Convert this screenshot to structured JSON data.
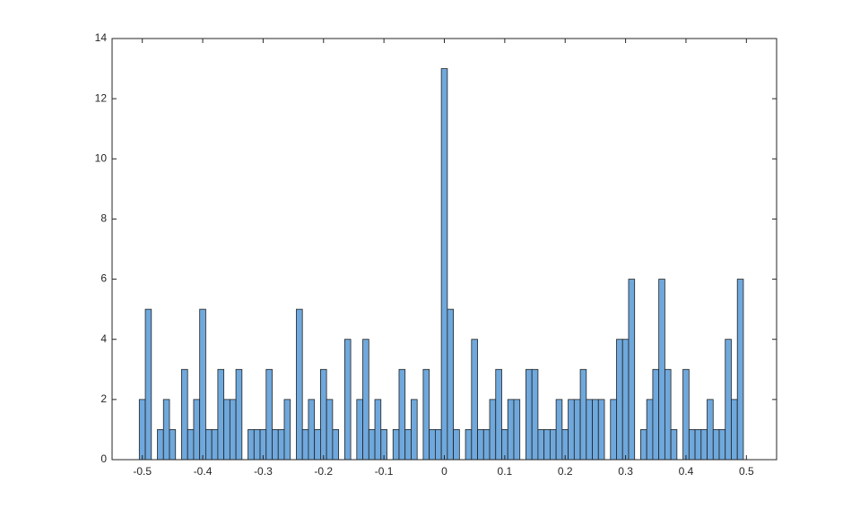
{
  "chart_data": {
    "type": "histogram",
    "color": "#6fa8dc",
    "edgecolor": "#222222",
    "bins": [
      -0.505,
      -0.495,
      -0.485,
      -0.475,
      -0.465,
      -0.455,
      -0.445,
      -0.435,
      -0.425,
      -0.415,
      -0.405,
      -0.395,
      -0.385,
      -0.375,
      -0.365,
      -0.355,
      -0.345,
      -0.335,
      -0.325,
      -0.315,
      -0.305,
      -0.295,
      -0.285,
      -0.275,
      -0.265,
      -0.255,
      -0.245,
      -0.235,
      -0.225,
      -0.215,
      -0.205,
      -0.195,
      -0.185,
      -0.175,
      -0.165,
      -0.155,
      -0.145,
      -0.135,
      -0.125,
      -0.115,
      -0.105,
      -0.095,
      -0.085,
      -0.075,
      -0.065,
      -0.055,
      -0.045,
      -0.035,
      -0.025,
      -0.015,
      -0.005,
      0.005,
      0.015,
      0.025,
      0.035,
      0.045,
      0.055,
      0.065,
      0.075,
      0.085,
      0.095,
      0.105,
      0.115,
      0.125,
      0.135,
      0.145,
      0.155,
      0.165,
      0.175,
      0.185,
      0.195,
      0.205,
      0.215,
      0.225,
      0.235,
      0.245,
      0.255,
      0.265,
      0.275,
      0.285,
      0.295,
      0.305,
      0.315,
      0.325,
      0.335,
      0.345,
      0.355,
      0.365,
      0.375,
      0.385,
      0.395,
      0.405,
      0.415,
      0.425,
      0.435,
      0.445,
      0.455,
      0.465,
      0.475,
      0.485,
      0.495
    ],
    "values": [
      2,
      5,
      0,
      1,
      2,
      1,
      0,
      3,
      1,
      2,
      5,
      1,
      1,
      3,
      2,
      2,
      3,
      0,
      1,
      1,
      1,
      3,
      1,
      1,
      2,
      0,
      5,
      1,
      2,
      1,
      3,
      2,
      1,
      0,
      4,
      0,
      2,
      4,
      1,
      2,
      1,
      0,
      1,
      3,
      1,
      2,
      0,
      3,
      1,
      1,
      13,
      5,
      1,
      0,
      1,
      4,
      1,
      1,
      2,
      3,
      1,
      2,
      2,
      0,
      3,
      3,
      1,
      1,
      1,
      2,
      1,
      2,
      2,
      3,
      2,
      2,
      2,
      0,
      2,
      4,
      4,
      6,
      0,
      1,
      2,
      3,
      6,
      3,
      1,
      0,
      3,
      1,
      1,
      1,
      2,
      1,
      1,
      4,
      2,
      6
    ],
    "xlim": [
      -0.55,
      0.55
    ],
    "xticks": [
      -0.5,
      -0.4,
      -0.3,
      -0.2,
      -0.1,
      0,
      0.1,
      0.2,
      0.3,
      0.4,
      0.5
    ],
    "ylim": [
      0,
      14
    ],
    "yticks": [
      0,
      2,
      4,
      6,
      8,
      10,
      12,
      14
    ]
  }
}
